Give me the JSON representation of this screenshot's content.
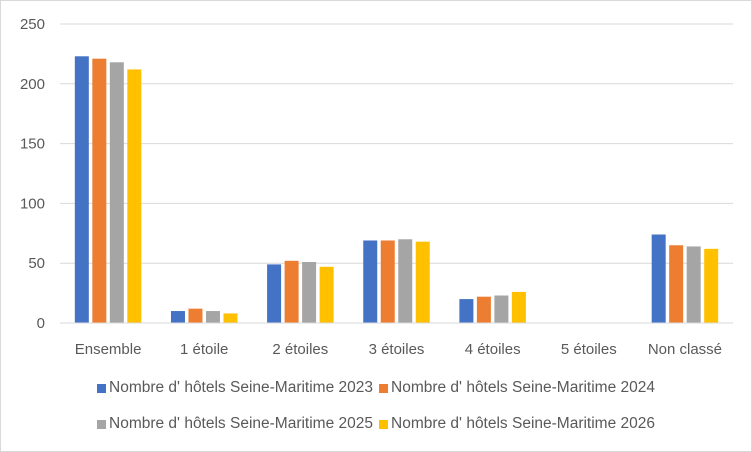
{
  "chart_data": {
    "type": "bar",
    "title": "",
    "xlabel": "",
    "ylabel": "",
    "ylim": [
      0,
      250
    ],
    "yticks": [
      0,
      50,
      100,
      150,
      200,
      250
    ],
    "grid": true,
    "legend_placement": "bottom",
    "categories": [
      "Ensemble",
      "1 étoile",
      "2 étoiles",
      "3 étoiles",
      "4 étoiles",
      "5 étoiles",
      "Non classé"
    ],
    "series": [
      {
        "name": "Nombre d' hôtels Seine-Maritime 2023",
        "color": "#4472c4",
        "values": [
          223,
          10,
          49,
          69,
          20,
          0,
          74
        ]
      },
      {
        "name": "Nombre d' hôtels Seine-Maritime 2024",
        "color": "#ed7d31",
        "values": [
          221,
          12,
          52,
          69,
          22,
          0,
          65
        ]
      },
      {
        "name": "Nombre d' hôtels Seine-Maritime 2025",
        "color": "#a5a5a5",
        "values": [
          218,
          10,
          51,
          70,
          23,
          0,
          64
        ]
      },
      {
        "name": "Nombre d' hôtels Seine-Maritime 2026",
        "color": "#ffc000",
        "values": [
          212,
          8,
          47,
          68,
          26,
          0,
          62
        ]
      }
    ]
  }
}
